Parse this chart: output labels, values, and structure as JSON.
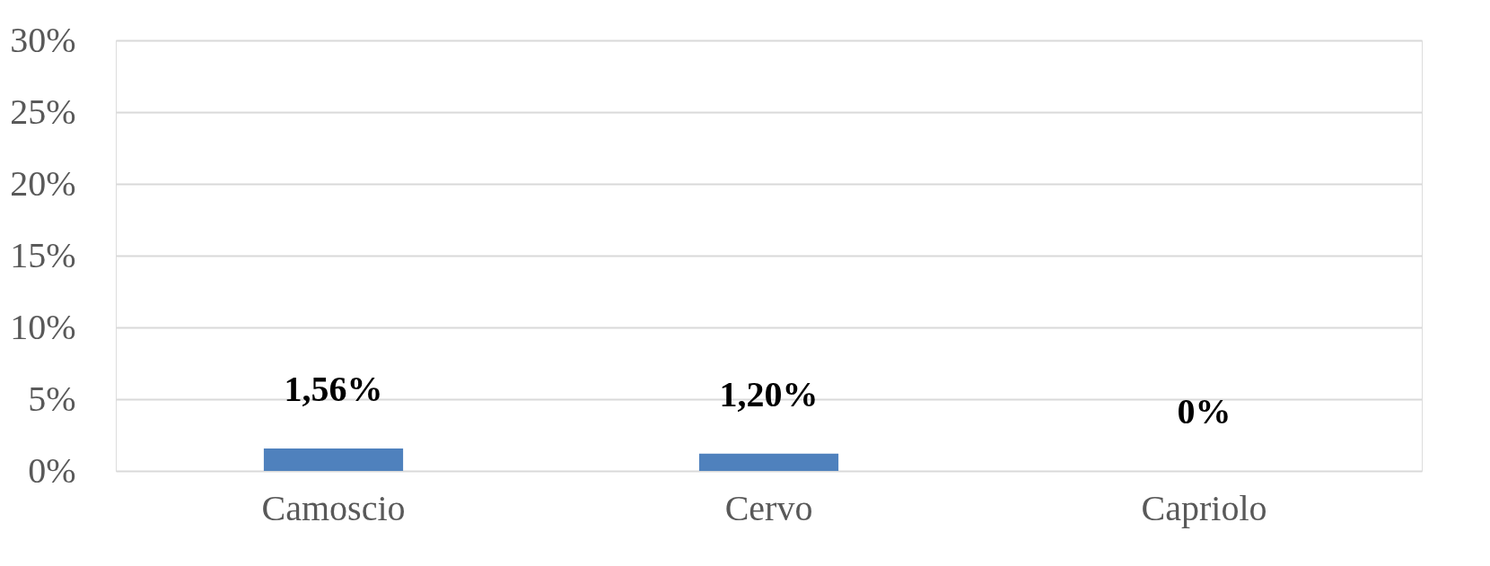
{
  "chart_data": {
    "type": "bar",
    "categories": [
      "Camoscio",
      "Cervo",
      "Capriolo"
    ],
    "values": [
      1.56,
      1.2,
      0
    ],
    "value_labels": [
      "1,56%",
      "1,20%",
      "0%"
    ],
    "color": "#4f81bd",
    "ylim": [
      0,
      30
    ],
    "yticks": [
      {
        "value": 0,
        "label": "0%"
      },
      {
        "value": 5,
        "label": "5%"
      },
      {
        "value": 10,
        "label": "10%"
      },
      {
        "value": 15,
        "label": "15%"
      },
      {
        "value": 20,
        "label": "20%"
      },
      {
        "value": 25,
        "label": "25%"
      },
      {
        "value": 30,
        "label": "30%"
      }
    ],
    "grid": "y"
  }
}
